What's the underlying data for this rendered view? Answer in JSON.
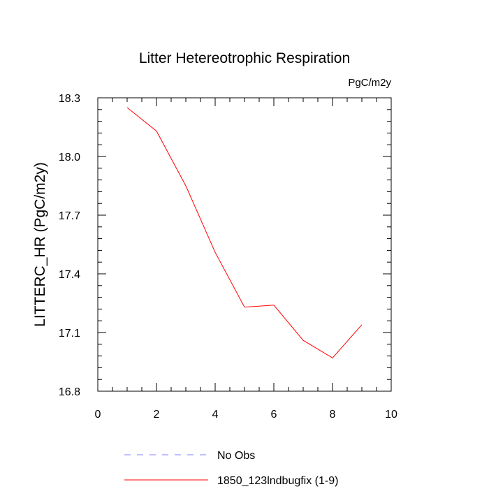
{
  "chart_data": {
    "type": "line",
    "title": "Litter Hetereotrophic Respiration",
    "units_label": "PgC/m2y",
    "xlabel": "",
    "ylabel": "LITTERC_HR  (PgC/m2y)",
    "xlim": [
      0,
      10
    ],
    "ylim": [
      16.8,
      18.3
    ],
    "x_ticks": [
      0,
      2,
      4,
      6,
      8,
      10
    ],
    "x_tick_labels": [
      "0",
      "2",
      "4",
      "6",
      "8",
      "10"
    ],
    "y_ticks": [
      16.8,
      17.1,
      17.4,
      17.7,
      18.0,
      18.3
    ],
    "y_tick_labels": [
      "16.8",
      "17.1",
      "17.4",
      "17.7",
      "18.0",
      "18.3"
    ],
    "grid": false,
    "legend_position": "bottom",
    "series": [
      {
        "name": "1850_123lndbugfix (1-9)",
        "color": "#ff0000",
        "dash": "solid",
        "x": [
          1,
          2,
          3,
          4,
          5,
          6,
          7,
          8,
          9
        ],
        "values": [
          18.25,
          18.13,
          17.85,
          17.51,
          17.23,
          17.24,
          17.06,
          16.97,
          17.14
        ]
      }
    ],
    "legend": [
      {
        "label": "No Obs",
        "color": "#8080ff",
        "dash": "dashed"
      },
      {
        "label": "1850_123lndbugfix (1-9)",
        "color": "#ff0000",
        "dash": "solid"
      }
    ]
  }
}
